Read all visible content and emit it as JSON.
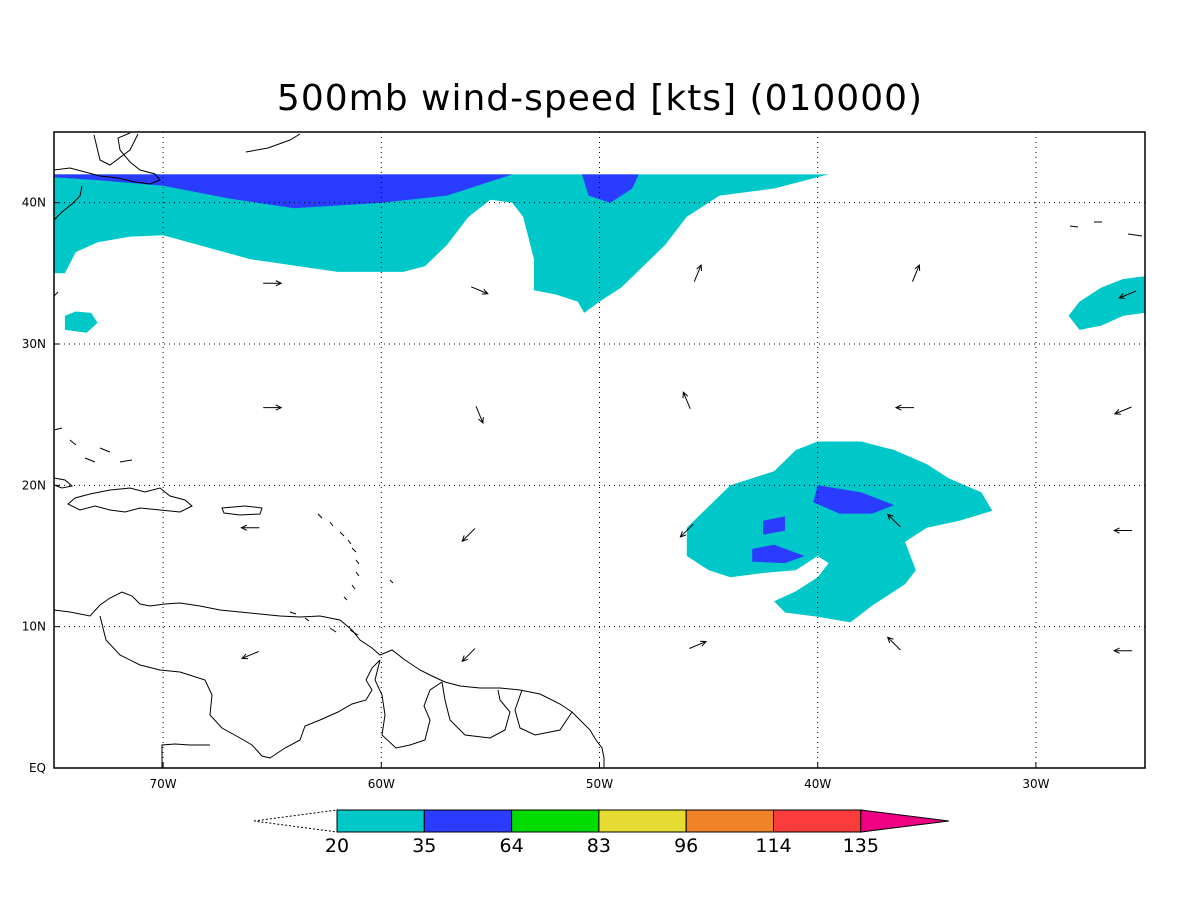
{
  "title": "500mb wind-speed [kts] (010000)",
  "map": {
    "lon_min": -75,
    "lon_max": -25,
    "lat_min": 0,
    "lat_max": 45,
    "grid": true,
    "grid_style": "dotted",
    "lon_ticks": [
      {
        "value": -70,
        "label": "70W"
      },
      {
        "value": -60,
        "label": "60W"
      },
      {
        "value": -50,
        "label": "50W"
      },
      {
        "value": -40,
        "label": "40W"
      },
      {
        "value": -30,
        "label": "30W"
      }
    ],
    "lat_ticks": [
      {
        "value": 0,
        "label": "EQ"
      },
      {
        "value": 10,
        "label": "10N"
      },
      {
        "value": 20,
        "label": "20N"
      },
      {
        "value": 30,
        "label": "30N"
      },
      {
        "value": 40,
        "label": "40N"
      }
    ]
  },
  "shading": {
    "levels": [
      20,
      35,
      64,
      83,
      96,
      114,
      135
    ],
    "colors": [
      "#00c8c8",
      "#2a3cff",
      "#00dc00",
      "#e6dc32",
      "#f08228",
      "#fa3c3c",
      "#f00082"
    ],
    "regions": [
      {
        "level": 20,
        "points": [
          [
            -75,
            42
          ],
          [
            -39.5,
            42
          ],
          [
            -42,
            41
          ],
          [
            -44.5,
            40.5
          ],
          [
            -46,
            39
          ],
          [
            -47,
            37
          ],
          [
            -48,
            35.5
          ],
          [
            -49,
            34
          ],
          [
            -50,
            33
          ],
          [
            -50.7,
            32.2
          ],
          [
            -51,
            33
          ],
          [
            -52,
            33.5
          ],
          [
            -53,
            33.8
          ],
          [
            -53,
            36
          ],
          [
            -53.5,
            39
          ],
          [
            -54,
            40
          ],
          [
            -55,
            40.2
          ],
          [
            -56,
            39
          ],
          [
            -57,
            37
          ],
          [
            -58,
            35.5
          ],
          [
            -59,
            35.1
          ],
          [
            -62,
            35.1
          ],
          [
            -66,
            36
          ],
          [
            -70,
            37.7
          ],
          [
            -71.5,
            37.6
          ],
          [
            -73,
            37.2
          ],
          [
            -74,
            36.5
          ],
          [
            -74.5,
            35
          ],
          [
            -75,
            35
          ]
        ]
      },
      {
        "level": 20,
        "points": [
          [
            -74,
            32.3
          ],
          [
            -73.3,
            32.2
          ],
          [
            -73,
            31.5
          ],
          [
            -73.5,
            30.8
          ],
          [
            -74.5,
            31
          ],
          [
            -74.5,
            32
          ]
        ]
      },
      {
        "level": 20,
        "points": [
          [
            -25,
            34.8
          ],
          [
            -26,
            34.6
          ],
          [
            -27,
            34
          ],
          [
            -28,
            33
          ],
          [
            -28.5,
            32
          ],
          [
            -28,
            31
          ],
          [
            -27,
            31.3
          ],
          [
            -26,
            32
          ],
          [
            -25,
            32.2
          ]
        ]
      },
      {
        "level": 20,
        "points": [
          [
            -46,
            17
          ],
          [
            -45,
            18.5
          ],
          [
            -44,
            20
          ],
          [
            -42,
            21
          ],
          [
            -41,
            22.5
          ],
          [
            -40,
            23.1
          ],
          [
            -38,
            23.1
          ],
          [
            -36.5,
            22.5
          ],
          [
            -35,
            21.5
          ],
          [
            -34,
            20.5
          ],
          [
            -32.5,
            19.5
          ],
          [
            -32,
            18.2
          ],
          [
            -33.5,
            17.5
          ],
          [
            -35,
            17
          ],
          [
            -36,
            16
          ],
          [
            -35.5,
            14
          ],
          [
            -36,
            13
          ],
          [
            -37.5,
            11.5
          ],
          [
            -38.5,
            10.3
          ],
          [
            -40,
            10.7
          ],
          [
            -41.5,
            11
          ],
          [
            -42,
            11.8
          ],
          [
            -41,
            12.5
          ],
          [
            -40,
            13.5
          ],
          [
            -39.5,
            14.5
          ],
          [
            -40,
            15
          ],
          [
            -41,
            14
          ],
          [
            -42.5,
            13.8
          ],
          [
            -44,
            13.5
          ],
          [
            -45,
            14
          ],
          [
            -46,
            15
          ]
        ]
      },
      {
        "level": 35,
        "points": [
          [
            -75,
            42
          ],
          [
            -54,
            42
          ],
          [
            -55,
            41.5
          ],
          [
            -57,
            40.5
          ],
          [
            -60,
            40
          ],
          [
            -64,
            39.6
          ],
          [
            -67,
            40.3
          ],
          [
            -70,
            41.2
          ],
          [
            -73,
            41.6
          ],
          [
            -75,
            41.8
          ]
        ]
      },
      {
        "level": 35,
        "points": [
          [
            -50.8,
            42
          ],
          [
            -48.2,
            42
          ],
          [
            -48.5,
            41
          ],
          [
            -49.5,
            40
          ],
          [
            -50.5,
            40.5
          ]
        ]
      },
      {
        "level": 35,
        "points": [
          [
            -40,
            20
          ],
          [
            -38,
            19.5
          ],
          [
            -36.5,
            18.6
          ],
          [
            -37.5,
            18
          ],
          [
            -39,
            18
          ],
          [
            -40.2,
            18.8
          ]
        ]
      },
      {
        "level": 35,
        "points": [
          [
            -42.5,
            17.5
          ],
          [
            -41.5,
            17.8
          ],
          [
            -41.5,
            16.8
          ],
          [
            -42.5,
            16.5
          ]
        ]
      },
      {
        "level": 35,
        "points": [
          [
            -43,
            15.5
          ],
          [
            -42,
            15.8
          ],
          [
            -40.6,
            15
          ],
          [
            -41.5,
            14.5
          ],
          [
            -43,
            14.6
          ]
        ]
      }
    ]
  },
  "wind_arrows": [
    {
      "lon": -65,
      "lat": 34.3,
      "dir": "E"
    },
    {
      "lon": -55.5,
      "lat": 33.8,
      "dir": "ESE"
    },
    {
      "lon": -45.5,
      "lat": 35,
      "dir": "NNE"
    },
    {
      "lon": -35.5,
      "lat": 35,
      "dir": "NNE"
    },
    {
      "lon": -25.8,
      "lat": 33.5,
      "dir": "WSW"
    },
    {
      "lon": -65,
      "lat": 25.5,
      "dir": "E"
    },
    {
      "lon": -55.5,
      "lat": 25,
      "dir": "SSE"
    },
    {
      "lon": -46,
      "lat": 26,
      "dir": "NNW"
    },
    {
      "lon": -36,
      "lat": 25.5,
      "dir": "W"
    },
    {
      "lon": -26,
      "lat": 25.3,
      "dir": "WSW"
    },
    {
      "lon": -66,
      "lat": 17,
      "dir": "W"
    },
    {
      "lon": -56,
      "lat": 16.5,
      "dir": "SW"
    },
    {
      "lon": -46,
      "lat": 16.8,
      "dir": "SW"
    },
    {
      "lon": -36.5,
      "lat": 17.5,
      "dir": "NW"
    },
    {
      "lon": -26,
      "lat": 16.8,
      "dir": "W"
    },
    {
      "lon": -66,
      "lat": 8,
      "dir": "WSW"
    },
    {
      "lon": -56,
      "lat": 8,
      "dir": "SW"
    },
    {
      "lon": -45.5,
      "lat": 8.7,
      "dir": "ENE"
    },
    {
      "lon": -36.5,
      "lat": 8.8,
      "dir": "NW"
    },
    {
      "lon": -26,
      "lat": 8.3,
      "dir": "W"
    }
  ],
  "colorbar": {
    "labels": [
      "20",
      "35",
      "64",
      "83",
      "96",
      "114",
      "135"
    ]
  }
}
